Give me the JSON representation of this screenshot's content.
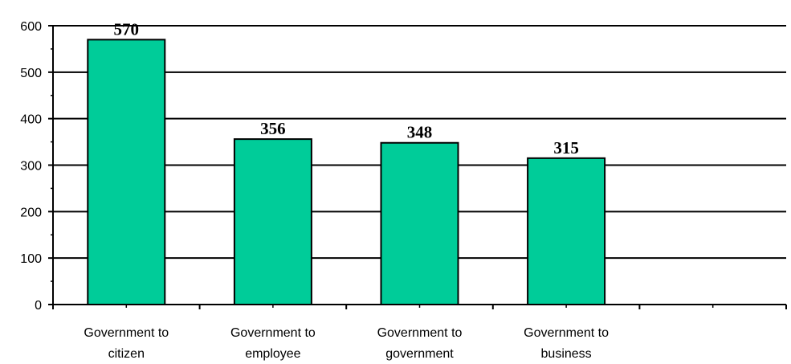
{
  "chart_data": {
    "type": "bar",
    "categories": [
      [
        "Government to",
        "citizen"
      ],
      [
        "Government to",
        "employee"
      ],
      [
        "Government to",
        "government"
      ],
      [
        "Government to",
        "business"
      ],
      [
        "",
        ""
      ]
    ],
    "values": [
      570,
      356,
      348,
      315,
      null
    ],
    "data_labels": [
      "570",
      "356",
      "348",
      "315",
      ""
    ],
    "ylim": [
      0,
      600
    ],
    "yticks": [
      0,
      100,
      200,
      300,
      400,
      500,
      600
    ],
    "grid": true,
    "legend": "none",
    "bar_color": "#00cc99",
    "title": "",
    "xlabel": "",
    "ylabel": ""
  }
}
